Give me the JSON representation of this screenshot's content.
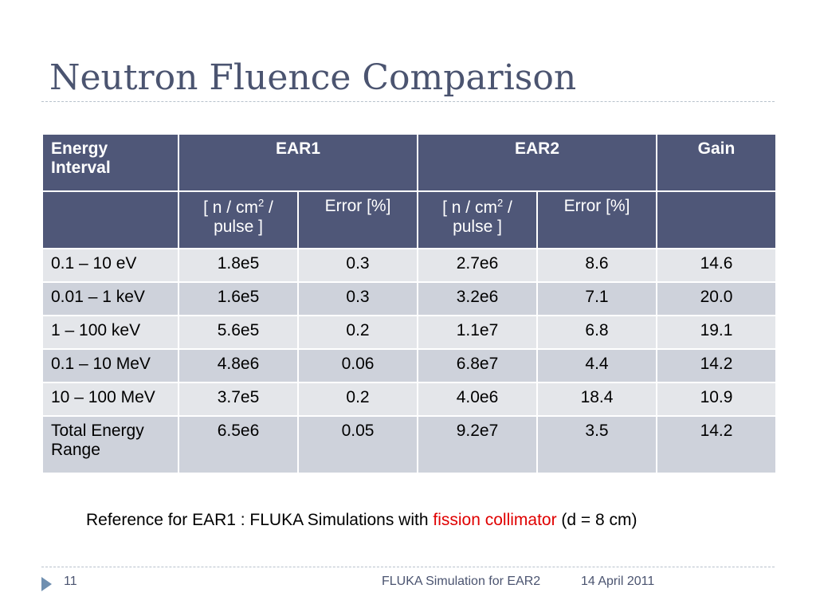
{
  "slide": {
    "title": "Neutron Fluence Comparison"
  },
  "table": {
    "header": {
      "energy_interval": "Energy Interval",
      "ear1": "EAR1",
      "ear2": "EAR2",
      "gain": "Gain"
    },
    "subheader": {
      "ear1_fluence_pre": "[ n / cm",
      "ear1_fluence_sup": "2",
      "ear1_fluence_post": " / pulse ]",
      "ear1_error": "Error [%]",
      "ear2_fluence_pre": "[ n / cm",
      "ear2_fluence_sup": "2",
      "ear2_fluence_post": " / pulse ]",
      "ear2_error": "Error [%]"
    },
    "rows": [
      {
        "interval": "0.1 – 10 eV",
        "ear1": "1.8e5",
        "ear1_err": "0.3",
        "ear2": "2.7e6",
        "ear2_err": "8.6",
        "gain": "14.6"
      },
      {
        "interval": "0.01 – 1 keV",
        "ear1": "1.6e5",
        "ear1_err": "0.3",
        "ear2": "3.2e6",
        "ear2_err": "7.1",
        "gain": "20.0"
      },
      {
        "interval": "1 – 100 keV",
        "ear1": "5.6e5",
        "ear1_err": "0.2",
        "ear2": "1.1e7",
        "ear2_err": "6.8",
        "gain": "19.1"
      },
      {
        "interval": "0.1 – 10 MeV",
        "ear1": "4.8e6",
        "ear1_err": "0.06",
        "ear2": "6.8e7",
        "ear2_err": "4.4",
        "gain": "14.2"
      },
      {
        "interval": "10 – 100 MeV",
        "ear1": "3.7e5",
        "ear1_err": "0.2",
        "ear2": "4.0e6",
        "ear2_err": "18.4",
        "gain": "10.9"
      },
      {
        "interval": "Total Energy Range",
        "ear1": "6.5e6",
        "ear1_err": "0.05",
        "ear2": "9.2e7",
        "ear2_err": "3.5",
        "gain": "14.2"
      }
    ]
  },
  "reference": {
    "prefix": "Reference for EAR1 : FLUKA Simulations with ",
    "highlight": "fission collimator",
    "suffix": " (d = 8 cm)",
    "highlight_color": "#e00000"
  },
  "footer": {
    "page_number": "11",
    "presentation": "FLUKA Simulation for EAR2",
    "date": "14 April 2011"
  }
}
